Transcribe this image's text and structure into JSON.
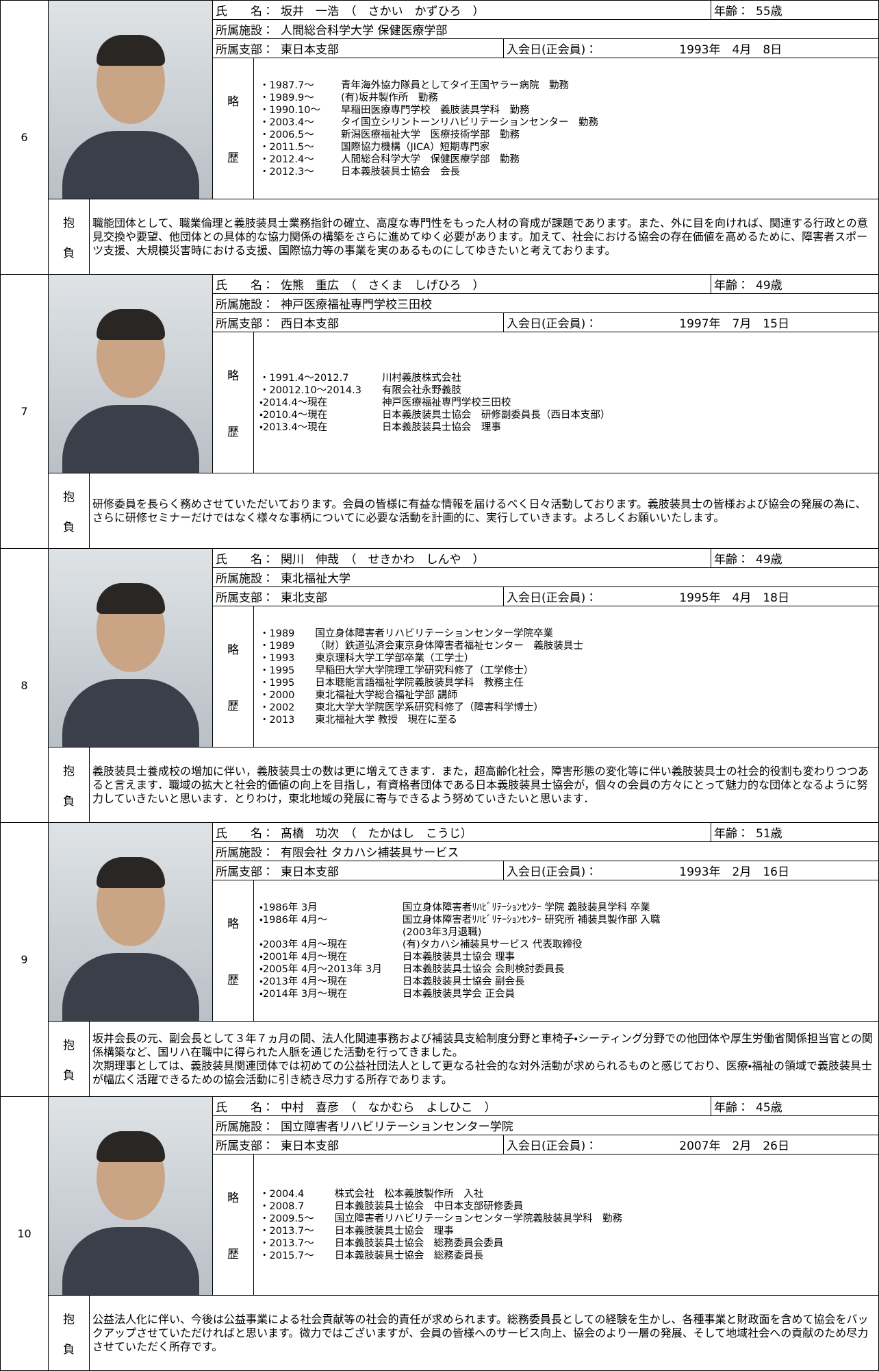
{
  "labels": {
    "name": "氏　　名：",
    "age": "年齢：",
    "facility": "所属施設：",
    "branch": "所属支部：",
    "join": "入会日(正会員)：",
    "history_1": "略",
    "history_2": "歴",
    "aspiration_1": "抱",
    "aspiration_2": "負"
  },
  "entries": [
    {
      "number": "6",
      "name": "坂井　一浩　（　さかい　かずひろ　）",
      "age": "55歳",
      "facility": "人間総合科学大学 保健医療学部",
      "branch": "東日本支部",
      "join_date": "1993年　4月　8日",
      "history": [
        {
          "date": "・1987.7～",
          "text": "青年海外協力隊員としてタイ王国ヤラー病院　勤務"
        },
        {
          "date": "・1989.9～",
          "text": "(有)坂井製作所　勤務"
        },
        {
          "date": "・1990.10～",
          "text": "早稲田医療専門学校　義肢装具学科　勤務"
        },
        {
          "date": "・2003.4～",
          "text": "タイ国立シリントーンリハビリテーションセンター　勤務"
        },
        {
          "date": "・2006.5～",
          "text": "新潟医療福祉大学　医療技術学部　勤務"
        },
        {
          "date": "・2011.5～",
          "text": "国際協力機構（JICA）短期専門家"
        },
        {
          "date": "・2012.4～",
          "text": "人間総合科学大学　保健医療学部　勤務"
        },
        {
          "date": "・2012.3～",
          "text": "日本義肢装具士協会　会長"
        }
      ],
      "aspiration": "職能団体として、職業倫理と義肢装具士業務指針の確立、高度な専門性をもった人材の育成が課題であります。また、外に目を向ければ、関連する行政との意見交換や要望、他団体との具体的な協力関係の構築をさらに進めてゆく必要があります。加えて、社会における協会の存在価値を高めるために、障害者スポーツ支援、大規模災害時における支援、国際協力等の事業を実のあるものにしてゆきたいと考えております。"
    },
    {
      "number": "7",
      "name": "佐熊　重広　（　さくま　しげひろ　）",
      "age": "49歳",
      "facility": "神戸医療福祉専門学校三田校",
      "branch": "西日本支部",
      "join_date": "1997年　7月　15日",
      "history": [
        {
          "date": "・1991.4～2012.7",
          "text": "川村義肢株式会社"
        },
        {
          "date": "・20012.10～2014.3",
          "text": "有限会社永野義肢"
        },
        {
          "date": "・2014.4～現在",
          "text": "神戸医療福祉専門学校三田校"
        },
        {
          "date": "・2010.4～現在",
          "text": "日本義肢装具士協会　研修副委員長（西日本支部）"
        },
        {
          "date": "・2013.4～現在",
          "text": "日本義肢装具士協会　理事"
        }
      ],
      "aspiration": "研修委員を長らく務めさせていただいております。会員の皆様に有益な情報を届けるべく日々活動しております。義肢装具士の皆様および協会の発展の為に、さらに研修セミナーだけではなく様々な事柄についてに必要な活動を計画的に、実行していきます。よろしくお願いいたします。"
    },
    {
      "number": "8",
      "name": "関川　伸哉　（　せきかわ　しんや　）",
      "age": "49歳",
      "facility": "東北福祉大学",
      "branch": "東北支部",
      "join_date": "1995年　4月　18日",
      "history": [
        {
          "date": "・1989",
          "text": "国立身体障害者リハビリテーションセンター学院卒業"
        },
        {
          "date": "・1989",
          "text": "（財）鉄道弘済会東京身体障害者福祉センター　義肢装具士"
        },
        {
          "date": "・1993",
          "text": "東京理科大学工学部卒業（工学士）"
        },
        {
          "date": "・1995",
          "text": "早稲田大学大学院理工学研究科修了（工学修士）"
        },
        {
          "date": "・1995",
          "text": "日本聴能言語福祉学院義肢装具学科　教務主任"
        },
        {
          "date": "・2000",
          "text": "東北福祉大学総合福祉学部 講師"
        },
        {
          "date": "・2002",
          "text": "東北大学大学院医学系研究科修了（障害科学博士）"
        },
        {
          "date": "・2013",
          "text": "東北福祉大学 教授　現在に至る"
        }
      ],
      "aspiration": "義肢装具士養成校の増加に伴い，義肢装具士の数は更に増えてきます．また，超高齢化社会，障害形態の変化等に伴い義肢装具士の社会的役割も変わりつつあると言えます．職域の拡大と社会的価値の向上を目指し，有資格者団体である日本義肢装具士協会が，個々の会員の方々にとって魅力的な団体となるように努力していきたいと思います．とりわけ，東北地域の発展に寄与できるよう努めていきたいと思います．"
    },
    {
      "number": "9",
      "name": "髙橋　功次　（　たかはし　こうじ）",
      "age": "51歳",
      "facility": "有限会社 タカハシ補装具サービス",
      "branch": "東日本支部",
      "join_date": "1993年　2月　16日",
      "history": [
        {
          "date": "・1986年 3月",
          "text": "国立身体障害者ﾘﾊﾋﾞﾘﾃｰｼｮﾝｾﾝﾀｰ 学院 義肢装具学科 卒業"
        },
        {
          "date": "・1986年 4月～",
          "text": "国立身体障害者ﾘﾊﾋﾞﾘﾃｰｼｮﾝｾﾝﾀｰ 研究所 補装具製作部 入職\n(2003年3月退職)"
        },
        {
          "date": "・2003年 4月～現在",
          "text": "(有)タカハシ補装具サービス 代表取締役"
        },
        {
          "date": "・2001年 4月～現在",
          "text": "日本義肢装具士協会 理事"
        },
        {
          "date": "・2005年 4月～2013年 3月",
          "text": "日本義肢装具士協会 会則検討委員長"
        },
        {
          "date": "・2013年 4月～現在",
          "text": "日本義肢装具士協会 副会長"
        },
        {
          "date": "・2014年 3月～現在",
          "text": "日本義肢装具学会 正会員"
        }
      ],
      "aspiration": "坂井会長の元、副会長として３年７ヵ月の間、法人化関連事務および補装具支給制度分野と車椅子・シーティング分野での他団体や厚生労働省関係担当官との関係構築など、国リハ在職中に得られた人脈を通じた活動を行ってきました。\n次期理事としては、義肢装具関連団体では初めての公益社団法人として更なる社会的な対外活動が求められるものと感じており、医療・福祉の領域で義肢装具士が幅広く活躍できるための協会活動に引き続き尽力する所存であります。"
    },
    {
      "number": "10",
      "name": "中村　喜彦　（　なかむら　よしひこ　）",
      "age": "45歳",
      "facility": "国立障害者リハビリテーションセンター学院",
      "branch": "東日本支部",
      "join_date": "2007年　2月　26日",
      "history": [
        {
          "date": "・2004.4",
          "text": "株式会社　松本義肢製作所　入社"
        },
        {
          "date": "・2008.7",
          "text": "日本義肢装具士協会　中日本支部研修委員"
        },
        {
          "date": "・2009.5～",
          "text": "国立障害者リハビリテーションセンター学院義肢装具学科　勤務"
        },
        {
          "date": "・2013.7～",
          "text": "日本義肢装具士協会　理事"
        },
        {
          "date": "・2013.7～",
          "text": "日本義肢装具士協会　総務委員会委員"
        },
        {
          "date": "・2015.7～",
          "text": "日本義肢装具士協会　総務委員長"
        }
      ],
      "aspiration": "公益法人化に伴い、今後は公益事業による社会貢献等の社会的責任が求められます。総務委員長としての経験を生かし、各種事業と財政面を含めて協会をバックアップさせていただければと思います。微力ではございますが、会員の皆様へのサービス向上、協会のより一層の発展、そして地域社会への貢献のため尽力させていただく所存です。"
    }
  ]
}
